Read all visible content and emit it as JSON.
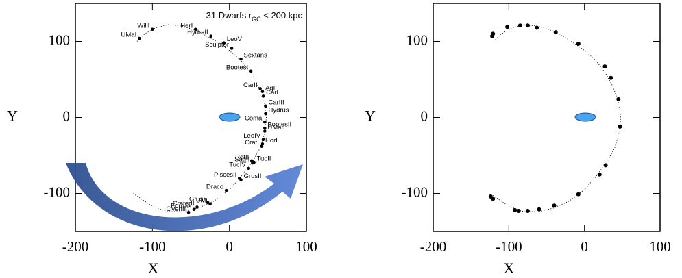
{
  "chart_data": [
    {
      "type": "scatter",
      "annotation": {
        "prefix": "31  Dwarfs r",
        "subscript": "GC",
        "suffix": " < 200 kpc"
      },
      "x_label": "X",
      "y_label": "Y",
      "xlim": [
        -200,
        100
      ],
      "ylim": [
        -150,
        150
      ],
      "xticks": [
        -200,
        -100,
        0,
        100
      ],
      "yticks": [
        -100,
        0,
        100
      ],
      "color": "#000000",
      "labels": [
        "UMaI",
        "WillI",
        "HerI",
        "HydraII",
        "LeoV",
        "Sculptor",
        "Sextans",
        "BootesI",
        "CarII",
        "AqII",
        "CarI",
        "CarIII",
        "Hydrus",
        "Coma",
        "BootesII",
        "UMaII",
        "LeoIV",
        "HorI",
        "CratI",
        "RetII",
        "SagII",
        "TucII",
        "TucIV",
        "PiscesII",
        "GrusII",
        "Draco",
        "GrusI",
        "UMi",
        "Fornax",
        "CraterII",
        "CVenII"
      ],
      "x": [
        -117,
        -100,
        -44,
        -24,
        -7,
        3,
        15,
        28,
        40,
        43,
        44,
        47,
        47,
        46,
        46,
        46,
        44,
        43,
        42,
        29,
        30,
        32,
        25,
        13,
        15,
        -4,
        -28,
        -25,
        -46,
        -42,
        -53
      ],
      "values": [
        104,
        116,
        116,
        107,
        98,
        91,
        77,
        61,
        38,
        34,
        28,
        15,
        5,
        -6,
        -14,
        -18,
        -29,
        -35,
        -38,
        -57,
        -60,
        -59,
        -67,
        -80,
        -82,
        -96,
        -112,
        -114,
        -121,
        -118,
        -125
      ],
      "orbit": {
        "x": [
          -120,
          -110,
          -95,
          -80,
          -60,
          -40,
          -20,
          0,
          15,
          28,
          38,
          45,
          48,
          46,
          40,
          30,
          15,
          0,
          -20,
          -40,
          -60,
          -80,
          -100,
          -125
        ],
        "y": [
          100,
          110,
          118,
          122,
          120,
          113,
          102,
          88,
          75,
          58,
          40,
          20,
          0,
          -20,
          -40,
          -58,
          -78,
          -95,
          -110,
          -119,
          -124,
          -124,
          -117,
          -100
        ]
      }
    },
    {
      "type": "scatter",
      "x_label": "X",
      "y_label": "Y",
      "xlim": [
        -200,
        100
      ],
      "ylim": [
        -150,
        150
      ],
      "xticks": [
        -200,
        -100,
        0,
        100
      ],
      "yticks": [
        -100,
        0,
        100
      ],
      "color": "#000000",
      "x": [
        -122,
        -121,
        -102,
        -85,
        -75,
        -63,
        -38,
        -8,
        27,
        35,
        45,
        47,
        28,
        20,
        -8,
        -40,
        -60,
        -75,
        -87,
        -92,
        -121,
        -124
      ],
      "values": [
        107,
        110,
        119,
        121,
        121,
        118,
        112,
        97,
        67,
        52,
        24,
        -12,
        -63,
        -75,
        -101,
        -116,
        -121,
        -123,
        -123,
        -122,
        -107,
        -104
      ],
      "orbit": {
        "x": [
          -120,
          -110,
          -95,
          -80,
          -60,
          -40,
          -20,
          0,
          15,
          28,
          38,
          45,
          48,
          46,
          40,
          30,
          15,
          0,
          -20,
          -40,
          -60,
          -80,
          -100,
          -125
        ],
        "y": [
          100,
          110,
          118,
          122,
          120,
          113,
          102,
          88,
          75,
          58,
          40,
          20,
          0,
          -20,
          -40,
          -58,
          -78,
          -95,
          -110,
          -119,
          -124,
          -124,
          -117,
          -100
        ]
      }
    }
  ]
}
